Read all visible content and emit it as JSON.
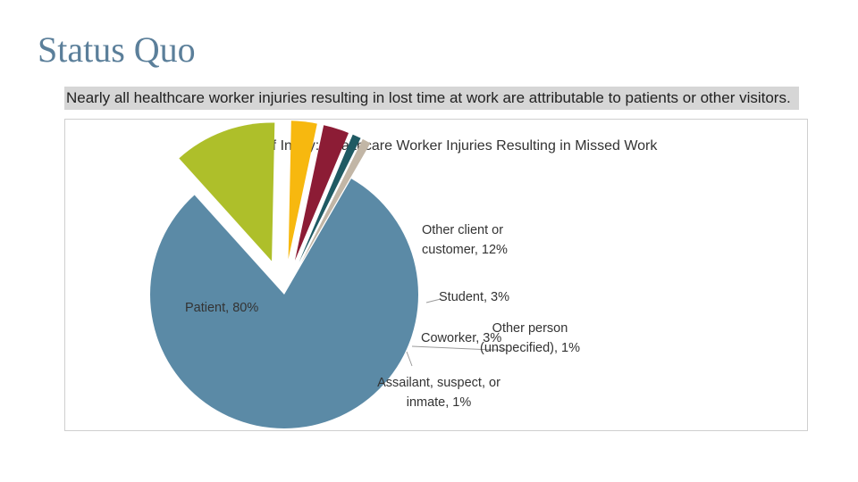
{
  "slide": {
    "title": "Status Quo",
    "headline": "Nearly all healthcare worker injuries resulting in lost time at work are attributable to patients or other visitors."
  },
  "chart_data": {
    "type": "pie",
    "title": "Source of Injury: Healthcare Worker Injuries Resulting in Missed Work",
    "legend": "none",
    "slices": [
      {
        "name": "Patient",
        "value": 80,
        "label_lines": [
          "Patient, 80%"
        ],
        "color": "#5b8aa6"
      },
      {
        "name": "Other client or customer",
        "value": 12,
        "label_lines": [
          "Other client or",
          "customer, 12%"
        ],
        "color": "#aebf2a"
      },
      {
        "name": "Student",
        "value": 3,
        "label_lines": [
          "Student, 3%"
        ],
        "color": "#f7b80f"
      },
      {
        "name": "Coworker",
        "value": 3,
        "label_lines": [
          "Coworker, 3%"
        ],
        "color": "#8c1c35"
      },
      {
        "name": "Other person (unspecified)",
        "value": 1,
        "label_lines": [
          "Other person",
          "(unspecified), 1%"
        ],
        "color": "#1f5a63"
      },
      {
        "name": "Assailant, suspect, or inmate",
        "value": 1,
        "label_lines": [
          "Assailant, suspect, or",
          "inmate, 1%"
        ],
        "color": "#c2b6a6"
      }
    ]
  }
}
